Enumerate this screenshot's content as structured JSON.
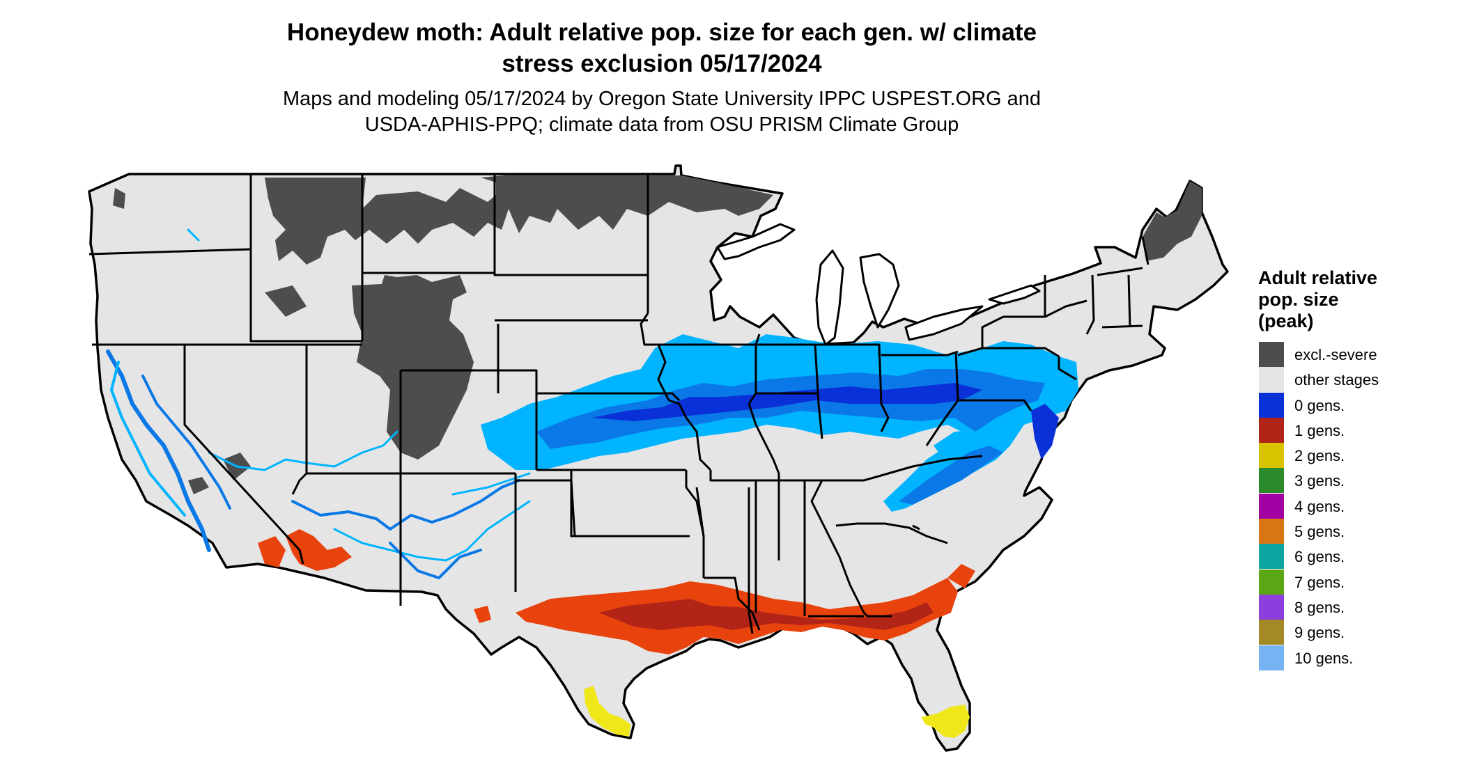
{
  "title": {
    "line1": "Honeydew moth: Adult relative pop. size for each gen. w/ climate",
    "line2": "stress exclusion 05/17/2024"
  },
  "subtitle": {
    "line1": "Maps and modeling 05/17/2024 by Oregon State University IPPC USPEST.ORG and",
    "line2": "USDA-APHIS-PPQ; climate data from OSU PRISM Climate Group"
  },
  "legend": {
    "title": [
      "Adult relative",
      "pop. size",
      "(peak)"
    ],
    "items": [
      {
        "label": "excl.-severe",
        "color": "#4d4d4d"
      },
      {
        "label": "other stages",
        "color": "#e5e5e5"
      },
      {
        "label": "0 gens.",
        "color": "#0a30d8"
      },
      {
        "label": "1 gens.",
        "color": "#b22418"
      },
      {
        "label": "2 gens.",
        "color": "#d9c200"
      },
      {
        "label": "3 gens.",
        "color": "#2a8a2c"
      },
      {
        "label": "4 gens.",
        "color": "#a100a3"
      },
      {
        "label": "5 gens.",
        "color": "#d97614"
      },
      {
        "label": "6 gens.",
        "color": "#0fa6a2"
      },
      {
        "label": "7 gens.",
        "color": "#5ba614"
      },
      {
        "label": "8 gens.",
        "color": "#8c3fdc"
      },
      {
        "label": "9 gens.",
        "color": "#a48a26"
      },
      {
        "label": "10 gens.",
        "color": "#75b3f3"
      }
    ]
  },
  "map_colors": {
    "land": "#e5e5e5",
    "excluded": "#4d4d4d",
    "gen0_light": "#00b4ff",
    "gen0_mid": "#0a78e6",
    "gen0_dark": "#0a30d8",
    "gen1_red": "#e8420d",
    "gen1_dark": "#b22418",
    "gen2_yellow": "#f0e71a",
    "border": "#000000"
  }
}
